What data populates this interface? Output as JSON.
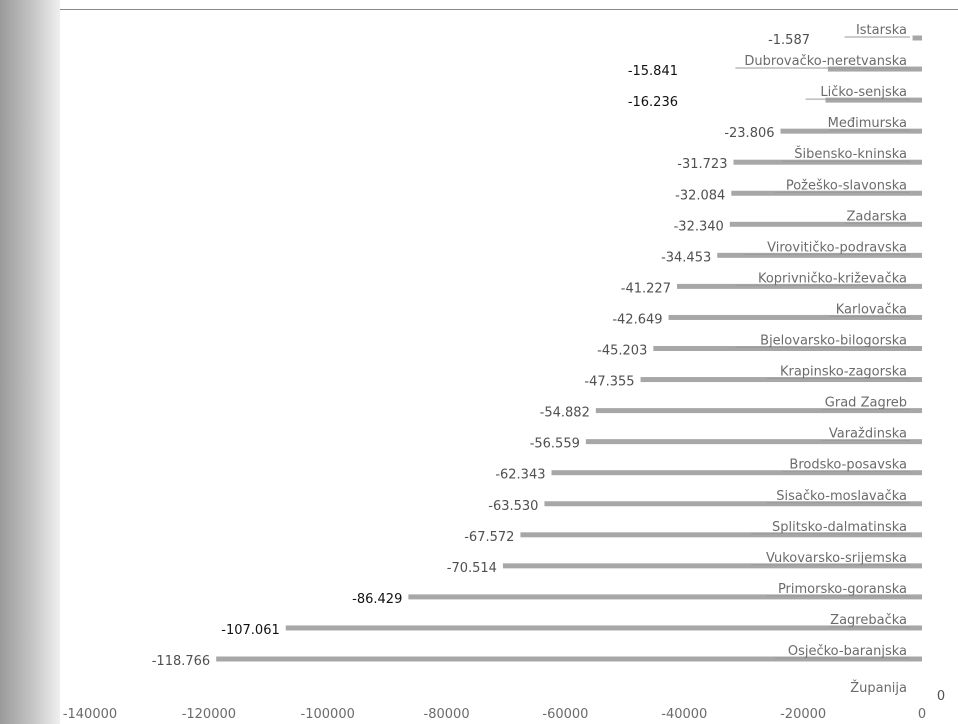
{
  "chart_data": {
    "type": "bar",
    "orientation": "horizontal",
    "categories": [
      "Istarska",
      "Dubrovačko-neretvanska",
      "Ličko-senjska",
      "Međimurska",
      "Šibensko-kninska",
      "Požeško-slavonska",
      "Zadarska",
      "Virovitičko-podravska",
      "Koprivničko-križevačka",
      "Karlovačka",
      "Bjelovarsko-bilogorska",
      "Krapinsko-zagorska",
      "Grad Zagreb",
      "Varaždinska",
      "Brodsko-posavska",
      "Sisačko-moslavačka",
      "Splitsko-dalmatinska",
      "Vukovarsko-srijemska",
      "Primorsko-goranska",
      "Zagrebačka",
      "Osječko-baranjska",
      "Županija"
    ],
    "values": [
      -1587,
      -15841,
      -16236,
      -23806,
      -31723,
      -32084,
      -32340,
      -34453,
      -41227,
      -42649,
      -45203,
      -47355,
      -54882,
      -56559,
      -62343,
      -63530,
      -67572,
      -70514,
      -86429,
      -107061,
      -118766,
      0
    ],
    "value_labels": [
      "-1.587",
      "-15.841",
      "-16.236",
      "-23.806",
      "-31.723",
      "-32.084",
      "-32.340",
      "-34.453",
      "-41.227",
      "-42.649",
      "-45.203",
      "-47.355",
      "-54.882",
      "-56.559",
      "-62.343",
      "-63.530",
      "-67.572",
      "-70.514",
      "-86.429",
      "-107.061",
      "-118.766",
      "0"
    ],
    "x_ticks": [
      "-140000",
      "-120000",
      "-100000",
      "-80000",
      "-60000",
      "-40000",
      "-20000",
      "0"
    ],
    "xlim": [
      -140000,
      0
    ],
    "title": "",
    "xlabel": "",
    "ylabel": "",
    "grid": false,
    "legend": "none",
    "colors": {
      "bar": "#a7a7a7",
      "label": "#505050",
      "label_emphasis": "#111111"
    },
    "emphasized_labels": [
      "-15.841",
      "-16.236",
      "-86.429",
      "-107.061"
    ]
  }
}
